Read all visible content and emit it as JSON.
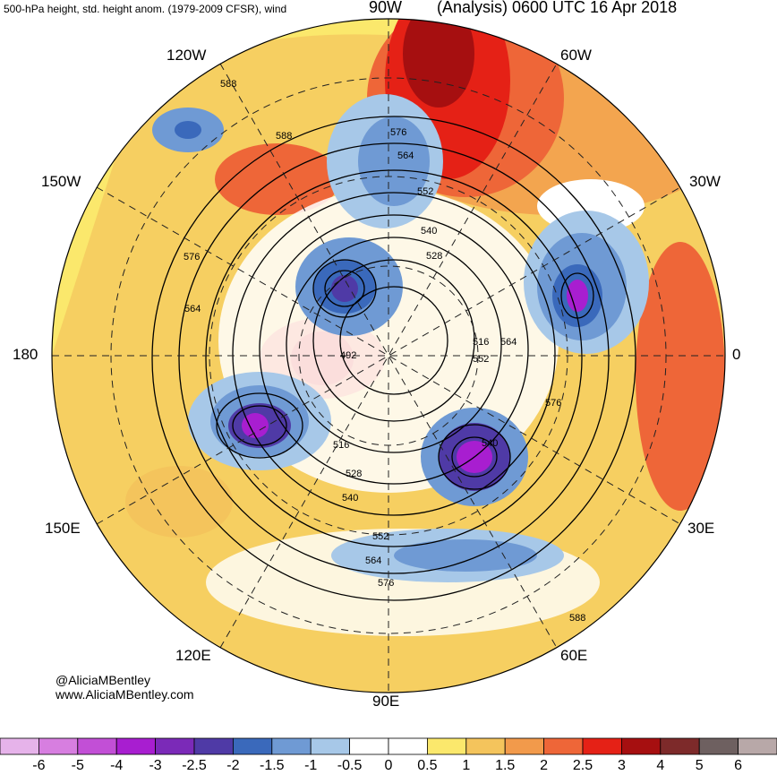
{
  "header": {
    "left_title": "500-hPa height, std. height anom. (1979-2009 CFSR), wind",
    "center_label": "90W",
    "right_title": "(Analysis) 0600 UTC 16 Apr 2018"
  },
  "longitude_labels": {
    "w120": "120W",
    "w60": "60W",
    "w150": "150W",
    "w30": "30W",
    "w180": "180",
    "zero": "0",
    "e150": "150E",
    "e30": "30E",
    "e120": "120E",
    "e60": "60E",
    "e90": "90E"
  },
  "contour_labels": [
    "588",
    "588",
    "576",
    "564",
    "552",
    "540",
    "528",
    "516",
    "576",
    "564",
    "492",
    "516",
    "528",
    "540",
    "552",
    "564",
    "576",
    "552",
    "564",
    "576",
    "540",
    "588"
  ],
  "credits": {
    "handle": "@AliciaMBentley",
    "website": "www.AliciaMBentley.com"
  },
  "colorbar": {
    "labels": [
      "-6",
      "-5",
      "-4",
      "-3",
      "-2.5",
      "-2",
      "-1.5",
      "-1",
      "-0.5",
      "0",
      "0.5",
      "1",
      "1.5",
      "2",
      "2.5",
      "3",
      "4",
      "5",
      "6"
    ],
    "colors": [
      "#e6b3ea",
      "#d77ee0",
      "#c24fd6",
      "#a81ed0",
      "#7b2ab8",
      "#4f3aa6",
      "#3a69bb",
      "#6f9ad4",
      "#a7c8e8",
      "#ffffff",
      "#ffffff",
      "#fbe86c",
      "#f4c45c",
      "#f29a4b",
      "#ee6638",
      "#e52116",
      "#a60f10",
      "#7d2a2a",
      "#6e6060",
      "#b8a8a8"
    ]
  }
}
